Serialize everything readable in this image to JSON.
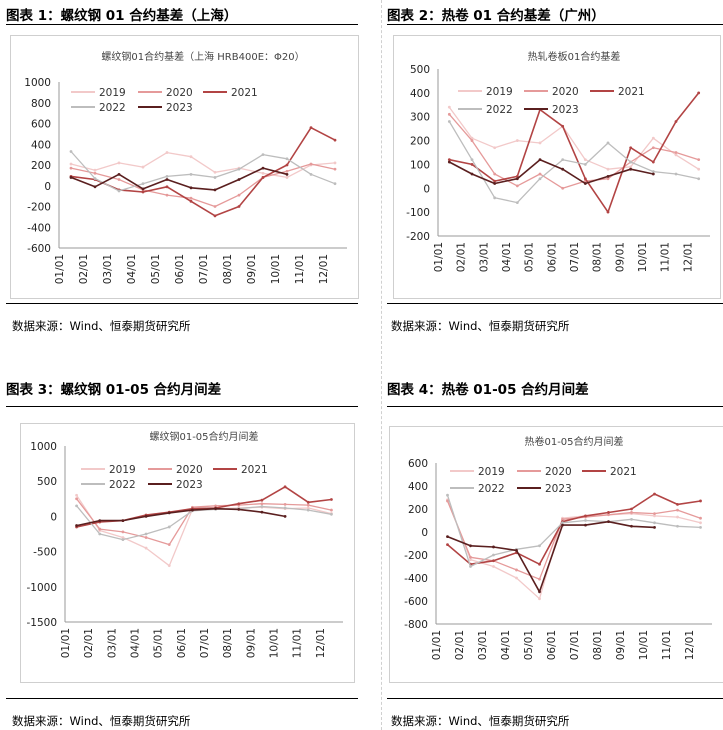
{
  "colors": {
    "s2019": "#f2c9c9",
    "s2020": "#e59a9a",
    "s2021": "#b24444",
    "s2022": "#bdbdbd",
    "s2023": "#5a1f1f"
  },
  "panels": [
    {
      "figure_title": "图表 1：螺纹钢 01 合约基差（上海）",
      "source": "数据来源：Wind、恒泰期货研究所"
    },
    {
      "figure_title": "图表 2：热卷 01 合约基差（广州）",
      "source": "数据来源：Wind、恒泰期货研究所"
    },
    {
      "figure_title": "图表 3：螺纹钢 01-05 合约月间差",
      "source": "数据来源：Wind、恒泰期货研究所"
    },
    {
      "figure_title": "图表 4：热卷 01-05 合约月间差",
      "source": "数据来源：Wind、恒泰期货研究所"
    }
  ],
  "chart_data": [
    {
      "type": "line",
      "title": "螺纹钢01合约基差（上海 HRB400E：Φ20）",
      "categories": [
        "01/01",
        "02/01",
        "03/01",
        "04/01",
        "05/01",
        "06/01",
        "07/01",
        "08/01",
        "09/01",
        "10/01",
        "11/01",
        "12/01"
      ],
      "ylim": [
        -600,
        1000
      ],
      "yticks": [
        -600,
        -400,
        -200,
        0,
        200,
        400,
        600,
        800,
        1000
      ],
      "series": [
        {
          "name": "2019",
          "values": [
            210,
            150,
            220,
            180,
            320,
            280,
            130,
            170,
            120,
            80,
            200,
            220
          ]
        },
        {
          "name": "2020",
          "values": [
            170,
            120,
            60,
            -40,
            -90,
            -120,
            -200,
            -90,
            80,
            140,
            210,
            160
          ]
        },
        {
          "name": "2021",
          "values": [
            90,
            60,
            -40,
            -60,
            -10,
            -150,
            -290,
            -200,
            80,
            200,
            560,
            440
          ]
        },
        {
          "name": "2022",
          "values": [
            330,
            70,
            -50,
            20,
            90,
            110,
            80,
            160,
            300,
            260,
            110,
            20
          ]
        },
        {
          "name": "2023",
          "values": [
            80,
            -10,
            110,
            -30,
            60,
            -20,
            -40,
            60,
            170,
            110,
            null,
            null
          ]
        }
      ]
    },
    {
      "type": "line",
      "title": "热轧卷板01合约基差",
      "categories": [
        "01/01",
        "02/01",
        "03/01",
        "04/01",
        "05/01",
        "06/01",
        "07/01",
        "08/01",
        "09/01",
        "10/01",
        "11/01",
        "12/01"
      ],
      "ylim": [
        -200,
        500
      ],
      "yticks": [
        -200,
        -100,
        0,
        100,
        200,
        300,
        400,
        500
      ],
      "series": [
        {
          "name": "2019",
          "values": [
            340,
            210,
            170,
            200,
            190,
            260,
            120,
            80,
            90,
            210,
            140,
            80
          ]
        },
        {
          "name": "2020",
          "values": [
            310,
            200,
            60,
            10,
            60,
            0,
            30,
            40,
            110,
            170,
            150,
            120
          ]
        },
        {
          "name": "2021",
          "values": [
            120,
            100,
            30,
            50,
            330,
            260,
            40,
            -100,
            170,
            110,
            280,
            400
          ]
        },
        {
          "name": "2022",
          "values": [
            280,
            120,
            -40,
            -60,
            40,
            120,
            100,
            190,
            110,
            70,
            60,
            40
          ]
        },
        {
          "name": "2023",
          "values": [
            110,
            60,
            20,
            40,
            120,
            80,
            20,
            50,
            80,
            60,
            null,
            null
          ]
        }
      ]
    },
    {
      "type": "line",
      "title": "螺纹钢01-05合约月间差",
      "categories": [
        "01/01",
        "02/01",
        "03/01",
        "04/01",
        "05/01",
        "06/01",
        "07/01",
        "08/01",
        "09/01",
        "10/01",
        "11/01",
        "12/01"
      ],
      "ylim": [
        -1500,
        1000
      ],
      "yticks": [
        -1500,
        -1000,
        -500,
        0,
        500,
        1000
      ],
      "series": [
        {
          "name": "2019",
          "values": [
            300,
            -200,
            -300,
            -450,
            -700,
            100,
            110,
            120,
            130,
            110,
            120,
            40
          ]
        },
        {
          "name": "2020",
          "values": [
            250,
            -180,
            -220,
            -300,
            -400,
            130,
            150,
            160,
            180,
            170,
            160,
            90
          ]
        },
        {
          "name": "2021",
          "values": [
            -150,
            -80,
            -60,
            20,
            60,
            110,
            120,
            180,
            230,
            420,
            200,
            240
          ]
        },
        {
          "name": "2022",
          "values": [
            150,
            -250,
            -330,
            -250,
            -150,
            80,
            100,
            110,
            140,
            120,
            90,
            30
          ]
        },
        {
          "name": "2023",
          "values": [
            -130,
            -60,
            -60,
            0,
            50,
            90,
            110,
            100,
            60,
            0,
            null,
            null
          ]
        }
      ]
    },
    {
      "type": "line",
      "title": "热卷01-05合约月间差",
      "categories": [
        "01/01",
        "02/01",
        "03/01",
        "04/01",
        "05/01",
        "06/01",
        "07/01",
        "08/01",
        "09/01",
        "10/01",
        "11/01",
        "12/01"
      ],
      "ylim": [
        -800,
        600
      ],
      "yticks": [
        -800,
        -600,
        -400,
        -200,
        0,
        200,
        400,
        600
      ],
      "series": [
        {
          "name": "2019",
          "values": [
            280,
            -240,
            -300,
            -400,
            -580,
            120,
            140,
            150,
            160,
            140,
            130,
            80
          ]
        },
        {
          "name": "2020",
          "values": [
            270,
            -220,
            -250,
            -330,
            -410,
            110,
            130,
            150,
            170,
            160,
            190,
            120
          ]
        },
        {
          "name": "2021",
          "values": [
            -110,
            -280,
            -250,
            -180,
            -280,
            90,
            140,
            170,
            200,
            330,
            240,
            270
          ]
        },
        {
          "name": "2022",
          "values": [
            320,
            -300,
            -200,
            -150,
            -120,
            80,
            100,
            90,
            110,
            80,
            50,
            40
          ]
        },
        {
          "name": "2023",
          "values": [
            -40,
            -120,
            -130,
            -160,
            -520,
            60,
            60,
            90,
            50,
            40,
            null,
            null
          ]
        }
      ]
    }
  ]
}
